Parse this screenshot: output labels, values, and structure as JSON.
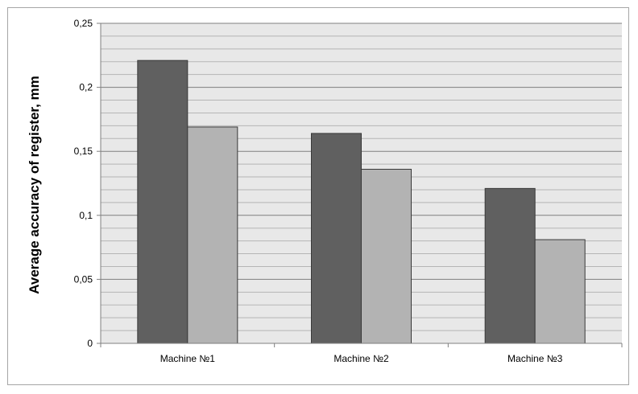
{
  "chart_data": {
    "type": "bar",
    "title": "",
    "xlabel": "",
    "ylabel": "Average accuracy of register, mm",
    "categories": [
      "Machine №1",
      "Machine №2",
      "Machine №3"
    ],
    "series": [
      {
        "values": [
          0.221,
          0.164,
          0.121
        ],
        "color": "#606060"
      },
      {
        "values": [
          0.169,
          0.136,
          0.081
        ],
        "color": "#b3b3b3"
      }
    ],
    "ylim": [
      0,
      0.25
    ],
    "yticks": [
      0,
      0.05,
      0.1,
      0.15,
      0.2,
      0.25
    ],
    "ytick_labels": [
      "0",
      "0,05",
      "0,1",
      "0,15",
      "0,2",
      "0,25"
    ],
    "minor_grid_step": 0.01,
    "grid": true,
    "legend": "none",
    "plot_background": "#e8e8e8"
  }
}
